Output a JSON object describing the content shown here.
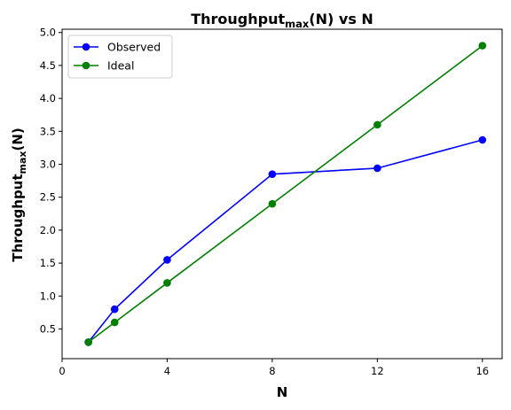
{
  "chart_data": {
    "type": "line",
    "title_main": "Throughput",
    "title_sub": "max",
    "title_rest": "(N) vs N",
    "xlabel": "N",
    "ylabel_main": "Throughput",
    "ylabel_sub": "max",
    "ylabel_rest": "(N)",
    "xlim": [
      0,
      16.75
    ],
    "ylim": [
      0.05,
      5.05
    ],
    "xticks": [
      0,
      4,
      8,
      12,
      16
    ],
    "yticks": [
      0.5,
      1.0,
      1.5,
      2.0,
      2.5,
      3.0,
      3.5,
      4.0,
      4.5,
      5.0
    ],
    "grid": false,
    "legend_position": "top-left",
    "series": [
      {
        "name": "Observed",
        "color": "#0000ff",
        "marker": "circle",
        "x": [
          1,
          2,
          4,
          8,
          12,
          16
        ],
        "y": [
          0.3,
          0.8,
          1.55,
          2.85,
          2.94,
          3.37
        ]
      },
      {
        "name": "Ideal",
        "color": "#008000",
        "marker": "circle",
        "x": [
          1,
          2,
          4,
          8,
          12,
          16
        ],
        "y": [
          0.3,
          0.6,
          1.2,
          2.4,
          3.6,
          4.8
        ]
      }
    ]
  }
}
